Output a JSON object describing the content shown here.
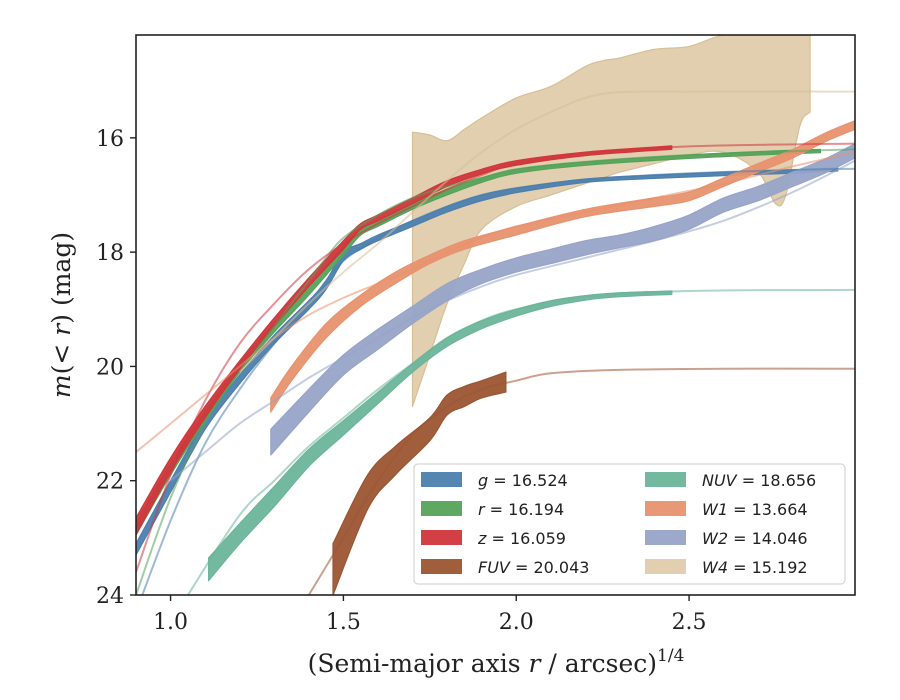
{
  "chart_data": {
    "type": "line",
    "title": "",
    "xlabel": "(Semi-major axis r / arcsec)",
    "xlabel_parts": {
      "open": "(Semi-major axis ",
      "var": "r",
      "rest": " / arcsec)",
      "exponent": "1/4"
    },
    "ylabel": "m(< r) (mag)",
    "ylabel_parts": {
      "m": "m",
      "open": "(",
      "lt": "< ",
      "r": "r",
      "close": ")",
      "unit": " (mag)"
    },
    "xlim": [
      0.9,
      2.98
    ],
    "ylim": [
      24,
      14.2
    ],
    "y_inverted": true,
    "xticks": [
      1.0,
      1.5,
      2.0,
      2.5
    ],
    "xtick_labels": [
      "1.0",
      "1.5",
      "2.0",
      "2.5"
    ],
    "yticks": [
      16,
      18,
      20,
      22,
      24
    ],
    "ytick_labels": [
      "16",
      "18",
      "20",
      "22",
      "24"
    ],
    "grid": false,
    "legend_position": "lower-right",
    "series": [
      {
        "name": "g = 16.524",
        "label_var": "g",
        "label_val": "16.524",
        "color": "#4c7fae",
        "band": [
          [
            0.9,
            23.1,
            23.3
          ],
          [
            1.0,
            22.0,
            22.2
          ],
          [
            1.1,
            20.95,
            21.1
          ],
          [
            1.2,
            20.15,
            20.3
          ],
          [
            1.3,
            19.45,
            19.6
          ],
          [
            1.4,
            18.85,
            19.0
          ],
          [
            1.45,
            18.5,
            18.65
          ],
          [
            1.5,
            18.0,
            18.15
          ],
          [
            1.55,
            17.85,
            17.95
          ],
          [
            1.6,
            17.7,
            17.8
          ],
          [
            1.7,
            17.45,
            17.55
          ],
          [
            1.8,
            17.2,
            17.3
          ],
          [
            1.9,
            17.0,
            17.1
          ],
          [
            2.0,
            16.88,
            16.96
          ],
          [
            2.2,
            16.72,
            16.78
          ],
          [
            2.4,
            16.65,
            16.71
          ],
          [
            2.6,
            16.6,
            16.66
          ],
          [
            2.8,
            16.56,
            16.62
          ],
          [
            2.93,
            16.52,
            16.58
          ]
        ],
        "fit": [
          [
            0.9,
            24.3
          ],
          [
            1.0,
            22.7
          ],
          [
            1.1,
            21.35
          ],
          [
            1.2,
            20.4
          ],
          [
            1.3,
            19.6
          ],
          [
            1.4,
            18.9
          ],
          [
            1.45,
            18.5
          ],
          [
            1.5,
            18.15
          ],
          [
            1.6,
            17.75
          ],
          [
            1.7,
            17.45
          ],
          [
            1.8,
            17.2
          ],
          [
            1.9,
            17.0
          ],
          [
            2.0,
            16.88
          ],
          [
            2.2,
            16.73
          ],
          [
            2.5,
            16.62
          ],
          [
            2.8,
            16.56
          ],
          [
            2.98,
            16.54
          ]
        ]
      },
      {
        "name": "r = 16.194",
        "label_var": "r",
        "label_val": "16.194",
        "color": "#55a35a",
        "band": [
          [
            0.9,
            22.75,
            22.95
          ],
          [
            1.0,
            21.7,
            21.9
          ],
          [
            1.1,
            20.8,
            20.95
          ],
          [
            1.2,
            19.95,
            20.1
          ],
          [
            1.3,
            19.25,
            19.4
          ],
          [
            1.4,
            18.6,
            18.75
          ],
          [
            1.5,
            17.9,
            18.05
          ],
          [
            1.55,
            17.6,
            17.7
          ],
          [
            1.6,
            17.45,
            17.55
          ],
          [
            1.7,
            17.15,
            17.25
          ],
          [
            1.8,
            16.9,
            17.0
          ],
          [
            1.9,
            16.7,
            16.78
          ],
          [
            2.0,
            16.55,
            16.62
          ],
          [
            2.2,
            16.42,
            16.48
          ],
          [
            2.5,
            16.3,
            16.36
          ],
          [
            2.7,
            16.24,
            16.3
          ],
          [
            2.88,
            16.2,
            16.26
          ]
        ],
        "fit": [
          [
            0.9,
            24.0
          ],
          [
            1.0,
            22.3
          ],
          [
            1.1,
            21.0
          ],
          [
            1.2,
            20.1
          ],
          [
            1.3,
            19.3
          ],
          [
            1.4,
            18.5
          ],
          [
            1.45,
            18.1
          ],
          [
            1.5,
            17.75
          ],
          [
            1.6,
            17.35
          ],
          [
            1.7,
            17.05
          ],
          [
            1.8,
            16.85
          ],
          [
            1.9,
            16.7
          ],
          [
            2.0,
            16.55
          ],
          [
            2.2,
            16.42
          ],
          [
            2.5,
            16.3
          ],
          [
            2.98,
            16.2
          ]
        ]
      },
      {
        "name": "z = 16.059",
        "label_var": "z",
        "label_val": "16.059",
        "color": "#d0363b",
        "band": [
          [
            0.9,
            22.65,
            22.95
          ],
          [
            1.0,
            21.6,
            21.85
          ],
          [
            1.1,
            20.7,
            20.9
          ],
          [
            1.2,
            19.9,
            20.05
          ],
          [
            1.3,
            19.15,
            19.3
          ],
          [
            1.4,
            18.45,
            18.6
          ],
          [
            1.5,
            17.8,
            17.95
          ],
          [
            1.55,
            17.5,
            17.6
          ],
          [
            1.6,
            17.35,
            17.45
          ],
          [
            1.7,
            17.05,
            17.15
          ],
          [
            1.8,
            16.75,
            16.85
          ],
          [
            1.9,
            16.55,
            16.63
          ],
          [
            2.0,
            16.4,
            16.48
          ],
          [
            2.2,
            16.25,
            16.31
          ],
          [
            2.45,
            16.14,
            16.2
          ]
        ],
        "fit": [
          [
            0.9,
            23.6
          ],
          [
            1.0,
            21.9
          ],
          [
            1.1,
            20.6
          ],
          [
            1.2,
            19.6
          ],
          [
            1.3,
            18.9
          ],
          [
            1.4,
            18.3
          ],
          [
            1.5,
            17.85
          ],
          [
            1.6,
            17.5
          ],
          [
            1.7,
            17.2
          ],
          [
            1.8,
            16.9
          ],
          [
            1.9,
            16.65
          ],
          [
            2.0,
            16.45
          ],
          [
            2.2,
            16.27
          ],
          [
            2.5,
            16.15
          ],
          [
            2.98,
            16.1
          ]
        ]
      },
      {
        "name": "FUV = 20.043",
        "label_var": "FUV",
        "label_val": "20.043",
        "color": "#9c5533",
        "band": [
          [
            1.47,
            23.1,
            24.0
          ],
          [
            1.57,
            21.9,
            22.5
          ],
          [
            1.65,
            21.4,
            21.9
          ],
          [
            1.75,
            20.9,
            21.3
          ],
          [
            1.8,
            20.5,
            20.85
          ],
          [
            1.85,
            20.35,
            20.7
          ],
          [
            1.9,
            20.25,
            20.55
          ],
          [
            1.97,
            20.1,
            20.45
          ]
        ],
        "fit": [
          [
            1.4,
            24.0
          ],
          [
            1.5,
            23.0
          ],
          [
            1.6,
            22.0
          ],
          [
            1.7,
            21.2
          ],
          [
            1.8,
            20.7
          ],
          [
            1.9,
            20.4
          ],
          [
            2.0,
            20.25
          ],
          [
            2.1,
            20.12
          ],
          [
            2.3,
            20.06
          ],
          [
            2.6,
            20.04
          ],
          [
            2.98,
            20.04
          ]
        ]
      },
      {
        "name": "NUV = 18.656",
        "label_var": "NUV",
        "label_val": "18.656",
        "color": "#6bb59a",
        "band": [
          [
            1.11,
            23.35,
            23.75
          ],
          [
            1.2,
            22.75,
            23.1
          ],
          [
            1.3,
            22.1,
            22.45
          ],
          [
            1.4,
            21.45,
            21.75
          ],
          [
            1.5,
            20.95,
            21.2
          ],
          [
            1.6,
            20.45,
            20.65
          ],
          [
            1.7,
            19.95,
            20.1
          ],
          [
            1.8,
            19.5,
            19.65
          ],
          [
            1.9,
            19.2,
            19.34
          ],
          [
            2.0,
            19.0,
            19.12
          ],
          [
            2.1,
            18.85,
            18.95
          ],
          [
            2.2,
            18.76,
            18.84
          ],
          [
            2.3,
            18.71,
            18.78
          ],
          [
            2.45,
            18.68,
            18.74
          ]
        ],
        "fit": [
          [
            1.05,
            24.0
          ],
          [
            1.2,
            22.6
          ],
          [
            1.3,
            22.0
          ],
          [
            1.4,
            21.4
          ],
          [
            1.5,
            20.9
          ],
          [
            1.6,
            20.4
          ],
          [
            1.7,
            19.95
          ],
          [
            1.8,
            19.5
          ],
          [
            1.9,
            19.2
          ],
          [
            2.0,
            19.0
          ],
          [
            2.2,
            18.78
          ],
          [
            2.5,
            18.68
          ],
          [
            2.98,
            18.66
          ]
        ]
      },
      {
        "name": "W1 = 13.664",
        "label_var": "W1",
        "label_val": "13.664",
        "color": "#e8926e",
        "band": [
          [
            1.29,
            20.55,
            20.8
          ],
          [
            1.35,
            20.0,
            20.25
          ],
          [
            1.45,
            19.25,
            19.5
          ],
          [
            1.55,
            18.75,
            18.95
          ],
          [
            1.65,
            18.35,
            18.55
          ],
          [
            1.75,
            18.05,
            18.2
          ],
          [
            1.85,
            17.8,
            17.95
          ],
          [
            2.0,
            17.55,
            17.7
          ],
          [
            2.2,
            17.25,
            17.38
          ],
          [
            2.4,
            17.05,
            17.2
          ],
          [
            2.5,
            16.95,
            17.1
          ],
          [
            2.6,
            16.7,
            16.85
          ],
          [
            2.7,
            16.45,
            16.6
          ],
          [
            2.8,
            16.2,
            16.35
          ],
          [
            2.9,
            15.9,
            16.05
          ],
          [
            2.98,
            15.7,
            15.85
          ]
        ],
        "fit": [
          [
            0.9,
            21.5
          ],
          [
            1.0,
            21.0
          ],
          [
            1.1,
            20.5
          ],
          [
            1.2,
            20.0
          ],
          [
            1.3,
            19.5
          ],
          [
            1.4,
            19.1
          ],
          [
            1.5,
            18.8
          ],
          [
            1.6,
            18.55
          ],
          [
            1.7,
            18.3
          ],
          [
            1.8,
            18.0
          ],
          [
            1.9,
            17.75
          ],
          [
            2.0,
            17.55
          ],
          [
            2.2,
            17.3
          ],
          [
            2.4,
            17.05
          ],
          [
            2.6,
            16.8
          ],
          [
            2.8,
            16.5
          ],
          [
            2.98,
            16.25
          ]
        ]
      },
      {
        "name": "W2 = 14.046",
        "label_var": "W2",
        "label_val": "14.046",
        "color": "#97a4c8",
        "band": [
          [
            1.29,
            21.1,
            21.55
          ],
          [
            1.4,
            20.4,
            20.8
          ],
          [
            1.5,
            19.8,
            20.15
          ],
          [
            1.6,
            19.35,
            19.7
          ],
          [
            1.7,
            18.95,
            19.25
          ],
          [
            1.8,
            18.55,
            18.85
          ],
          [
            1.9,
            18.3,
            18.55
          ],
          [
            2.0,
            18.1,
            18.35
          ],
          [
            2.1,
            17.95,
            18.2
          ],
          [
            2.2,
            17.8,
            18.05
          ],
          [
            2.3,
            17.7,
            17.92
          ],
          [
            2.4,
            17.55,
            17.8
          ],
          [
            2.5,
            17.35,
            17.6
          ],
          [
            2.6,
            17.05,
            17.3
          ],
          [
            2.7,
            16.85,
            17.1
          ],
          [
            2.8,
            16.6,
            16.85
          ],
          [
            2.9,
            16.35,
            16.6
          ],
          [
            2.98,
            16.1,
            16.35
          ]
        ],
        "fit": [
          [
            1.0,
            22.0
          ],
          [
            1.1,
            21.5
          ],
          [
            1.2,
            21.0
          ],
          [
            1.3,
            20.6
          ],
          [
            1.4,
            20.2
          ],
          [
            1.5,
            19.85
          ],
          [
            1.6,
            19.5
          ],
          [
            1.7,
            19.15
          ],
          [
            1.8,
            18.85
          ],
          [
            1.9,
            18.6
          ],
          [
            2.0,
            18.4
          ],
          [
            2.2,
            18.1
          ],
          [
            2.4,
            17.8
          ],
          [
            2.6,
            17.45
          ],
          [
            2.8,
            16.95
          ],
          [
            2.98,
            16.4
          ]
        ]
      },
      {
        "name": "W4 = 15.192",
        "label_var": "W4",
        "label_val": "15.192",
        "color": "#d7bf96",
        "band": [
          [
            1.7,
            15.9,
            20.7
          ],
          [
            1.75,
            15.95,
            19.8
          ],
          [
            1.8,
            16.05,
            18.9
          ],
          [
            1.85,
            15.85,
            18.2
          ],
          [
            1.9,
            15.65,
            17.6
          ],
          [
            2.0,
            15.3,
            17.2
          ],
          [
            2.1,
            15.1,
            17.0
          ],
          [
            2.2,
            14.75,
            16.8
          ],
          [
            2.25,
            14.65,
            16.7
          ],
          [
            2.3,
            14.6,
            16.6
          ],
          [
            2.4,
            14.45,
            16.45
          ],
          [
            2.5,
            14.4,
            16.3
          ],
          [
            2.6,
            14.2,
            16.25
          ],
          [
            2.7,
            14.2,
            16.6
          ],
          [
            2.75,
            14.2,
            17.15
          ],
          [
            2.78,
            14.2,
            17.0
          ],
          [
            2.82,
            14.2,
            15.8
          ],
          [
            2.85,
            14.2,
            15.55
          ]
        ],
        "fit": [
          [
            1.2,
            20.1
          ],
          [
            1.3,
            19.5
          ],
          [
            1.4,
            18.9
          ],
          [
            1.5,
            18.35
          ],
          [
            1.6,
            17.85
          ],
          [
            1.7,
            17.3
          ],
          [
            1.8,
            16.75
          ],
          [
            1.9,
            16.25
          ],
          [
            2.0,
            15.85
          ],
          [
            2.1,
            15.55
          ],
          [
            2.2,
            15.3
          ],
          [
            2.3,
            15.2
          ],
          [
            2.5,
            15.19
          ],
          [
            2.98,
            15.19
          ]
        ]
      }
    ]
  }
}
